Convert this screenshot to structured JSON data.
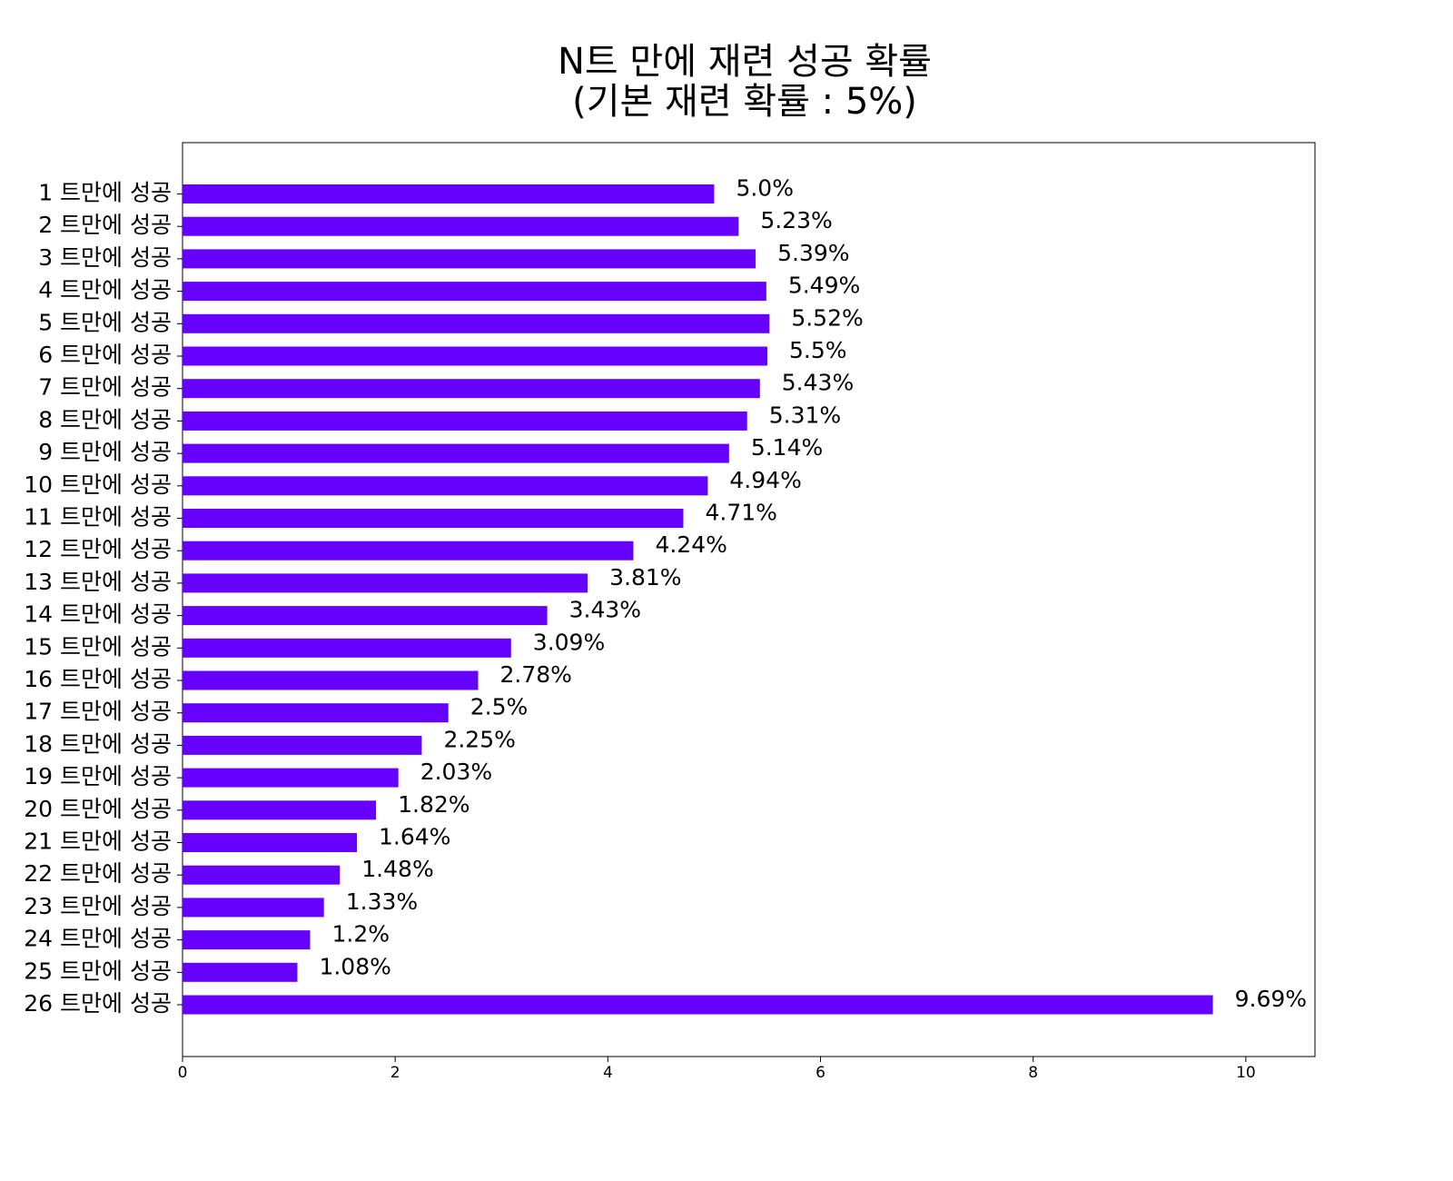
{
  "chart_data": {
    "type": "barh",
    "title": [
      "N트 만에 재련 성공 확률",
      "(기본 재련 확률 : 5%)"
    ],
    "categories": [
      "1 트만에 성공",
      "2 트만에 성공",
      "3 트만에 성공",
      "4 트만에 성공",
      "5 트만에 성공",
      "6 트만에 성공",
      "7 트만에 성공",
      "8 트만에 성공",
      "9 트만에 성공",
      "10 트만에 성공",
      "11 트만에 성공",
      "12 트만에 성공",
      "13 트만에 성공",
      "14 트만에 성공",
      "15 트만에 성공",
      "16 트만에 성공",
      "17 트만에 성공",
      "18 트만에 성공",
      "19 트만에 성공",
      "20 트만에 성공",
      "21 트만에 성공",
      "22 트만에 성공",
      "23 트만에 성공",
      "24 트만에 성공",
      "25 트만에 성공",
      "26 트만에 성공"
    ],
    "values": [
      5.0,
      5.23,
      5.39,
      5.49,
      5.52,
      5.5,
      5.43,
      5.31,
      5.14,
      4.94,
      4.71,
      4.24,
      3.81,
      3.43,
      3.09,
      2.78,
      2.5,
      2.25,
      2.03,
      1.82,
      1.64,
      1.48,
      1.33,
      1.2,
      1.08,
      9.69
    ],
    "value_labels": [
      "5.0%",
      "5.23%",
      "5.39%",
      "5.49%",
      "5.52%",
      "5.5%",
      "5.43%",
      "5.31%",
      "5.14%",
      "4.94%",
      "4.71%",
      "4.24%",
      "3.81%",
      "3.43%",
      "3.09%",
      "2.78%",
      "2.5%",
      "2.25%",
      "2.03%",
      "1.82%",
      "1.64%",
      "1.48%",
      "1.33%",
      "1.2%",
      "1.08%",
      "9.69%"
    ],
    "color": "#6600ff",
    "xlim": [
      0,
      10.65
    ],
    "xticks": [
      0,
      2,
      4,
      6,
      8,
      10
    ]
  }
}
